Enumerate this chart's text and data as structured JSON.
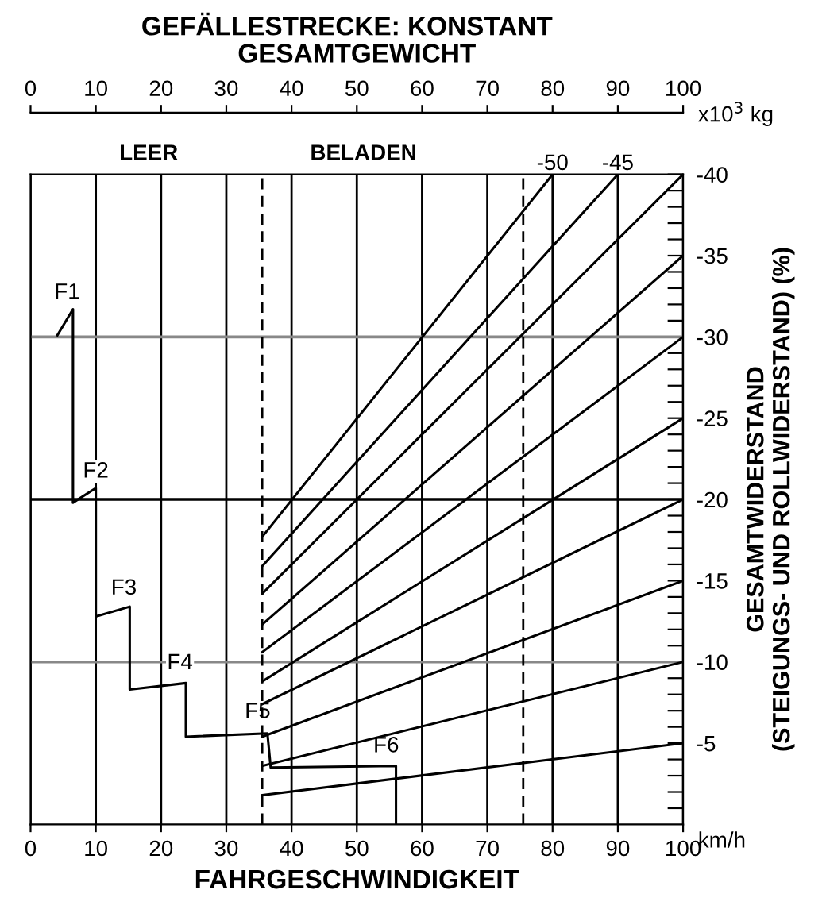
{
  "chart_data": {
    "type": "line",
    "title": "GEFÄLLESTRECKE: KONSTANT",
    "xlabel": "FAHRGESCHWINDIGKEIT",
    "x2label": "GESAMTGEWICHT",
    "ylabel": "GESAMTWIDERSTAND\n(STEIGUNGS- UND ROLLWIDERSTAND) (%)",
    "xlim": [
      0,
      100
    ],
    "xticks": [
      0,
      10,
      20,
      30,
      40,
      50,
      60,
      70,
      80,
      90,
      100
    ],
    "x2lim": [
      0,
      100
    ],
    "x2ticks": [
      0,
      10,
      20,
      30,
      40,
      50,
      60,
      70,
      80,
      90,
      100
    ],
    "ylim": [
      0,
      -40
    ],
    "yticks": [
      {
        "value": -1,
        "label": null
      },
      {
        "value": -2,
        "label": null
      },
      {
        "value": -3,
        "label": null
      },
      {
        "value": -4,
        "label": null
      },
      -5,
      {
        "value": -6,
        "label": null
      },
      {
        "value": -7,
        "label": null
      },
      {
        "value": -8,
        "label": null
      },
      {
        "value": -9,
        "label": null
      },
      -10,
      {
        "value": -11,
        "label": null
      },
      {
        "value": -12,
        "label": null
      },
      {
        "value": -13,
        "label": null
      },
      {
        "value": -14,
        "label": null
      },
      -15,
      {
        "value": -16,
        "label": null
      },
      {
        "value": -17,
        "label": null
      },
      {
        "value": -18,
        "label": null
      },
      {
        "value": -19,
        "label": null
      },
      -20,
      {
        "value": -21,
        "label": null
      },
      {
        "value": -22,
        "label": null
      },
      {
        "value": -23,
        "label": null
      },
      {
        "value": -24,
        "label": null
      },
      -25,
      {
        "value": -26,
        "label": null
      },
      {
        "value": -27,
        "label": null
      },
      {
        "value": -28,
        "label": null
      },
      {
        "value": -29,
        "label": null
      },
      -30,
      {
        "value": -31,
        "label": null
      },
      {
        "value": -32,
        "label": null
      },
      {
        "value": -33,
        "label": null
      },
      {
        "value": -34,
        "label": null
      },
      -35,
      {
        "value": -36,
        "label": null
      },
      {
        "value": -37,
        "label": null
      },
      {
        "value": -38,
        "label": null
      },
      {
        "value": -39,
        "label": null
      },
      -40
    ],
    "grid": "x",
    "series": [
      {
        "color": "#000000",
        "x": [
          4.1,
          6.5,
          6.5,
          10,
          10,
          15.2,
          15.2,
          23.8,
          23.8,
          36.3,
          36.8,
          56,
          56
        ],
        "values": [
          -30.1,
          -31.7,
          -19.8,
          -20.7,
          -12.8,
          -13.4,
          -8.3,
          -8.7,
          -5.4,
          -5.6,
          -3.5,
          -3.6,
          0
        ]
      },
      {
        "name": "-50",
        "color": "#000000",
        "axis": "x2",
        "x": [
          35.5,
          80
        ],
        "values": [
          -17.7,
          -40
        ]
      },
      {
        "name": "-45",
        "color": "#000000",
        "axis": "x2",
        "x": [
          35.5,
          90
        ],
        "values": [
          -15.9,
          -40
        ]
      },
      {
        "color": "#000000",
        "axis": "x2",
        "x": [
          35.5,
          100
        ],
        "values": [
          -14.2,
          -40
        ]
      },
      {
        "color": "#000000",
        "axis": "x2",
        "x": [
          35.5,
          100
        ],
        "values": [
          -12.3,
          -35
        ]
      },
      {
        "color": "#000000",
        "axis": "x2",
        "x": [
          35.5,
          100
        ],
        "values": [
          -10.6,
          -30
        ]
      },
      {
        "color": "#000000",
        "axis": "x2",
        "x": [
          35.5,
          100
        ],
        "values": [
          -8.8,
          -25
        ]
      },
      {
        "color": "#000000",
        "axis": "x2",
        "x": [
          35.5,
          100
        ],
        "values": [
          -7.4,
          -20
        ]
      },
      {
        "color": "#000000",
        "axis": "x2",
        "x": [
          35.5,
          100
        ],
        "values": [
          -5.4,
          -15
        ]
      },
      {
        "color": "#000000",
        "axis": "x2",
        "x": [
          35.5,
          100
        ],
        "values": [
          -3.6,
          -10
        ]
      },
      {
        "color": "#000000",
        "axis": "x2",
        "x": [
          35.5,
          100
        ],
        "values": [
          -1.8,
          -5
        ]
      }
    ],
    "ref_lines": [
      {
        "axis": "x2",
        "value": 35.5,
        "line_style": "dashed",
        "color": "#000000"
      },
      {
        "axis": "x2",
        "value": 75.5,
        "line_style": "dashed",
        "color": "#000000"
      },
      {
        "axis": "y",
        "value": -10,
        "color": "#888888"
      },
      {
        "axis": "y",
        "value": -20,
        "color": "#000000"
      },
      {
        "axis": "y",
        "value": -30,
        "color": "#888888"
      }
    ],
    "annotations": [
      {
        "text": "F1",
        "x": 5.6,
        "y": -32.7
      },
      {
        "text": "F2",
        "x": 10,
        "y": -21.7
      },
      {
        "text": "F3",
        "x": 14.3,
        "y": -14.5
      },
      {
        "text": "F4",
        "x": 22.9,
        "y": -9.9
      },
      {
        "text": "F5",
        "x": 34.8,
        "y": -6.9
      },
      {
        "text": "F6",
        "x": 54.5,
        "y": -4.8
      },
      "LEER",
      "BELADEN",
      "x10$^{3}$ kg",
      "km/h"
    ]
  }
}
